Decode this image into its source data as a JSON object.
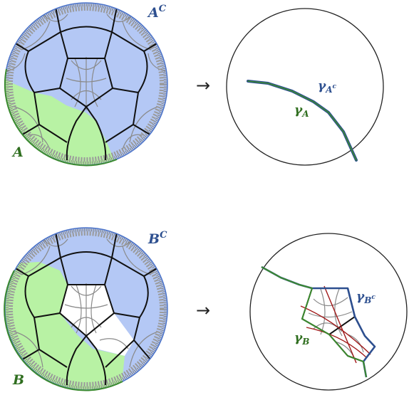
{
  "top": {
    "region_label": "A",
    "complement_label": "A",
    "complement_sup": "C",
    "gamma_region": "γ",
    "gamma_region_sub": "A",
    "gamma_complement": "γ",
    "gamma_complement_sub": "A",
    "gamma_complement_subsup": "c"
  },
  "bottom": {
    "region_label": "B",
    "complement_label": "B",
    "complement_sup": "C",
    "gamma_region": "γ",
    "gamma_region_sub": "B",
    "gamma_complement": "γ",
    "gamma_complement_sub": "B",
    "gamma_complement_subsup": "c"
  },
  "arrow": "→",
  "colors": {
    "blue_fill": "#b4c8f5",
    "green_fill": "#b8f2a4",
    "blue_curve": "#2d4f8f",
    "green_curve": "#3b8a2e",
    "red_geodesic": "#a01818",
    "label_green": "#2f6e1f",
    "label_blue": "#2d4f8f"
  }
}
